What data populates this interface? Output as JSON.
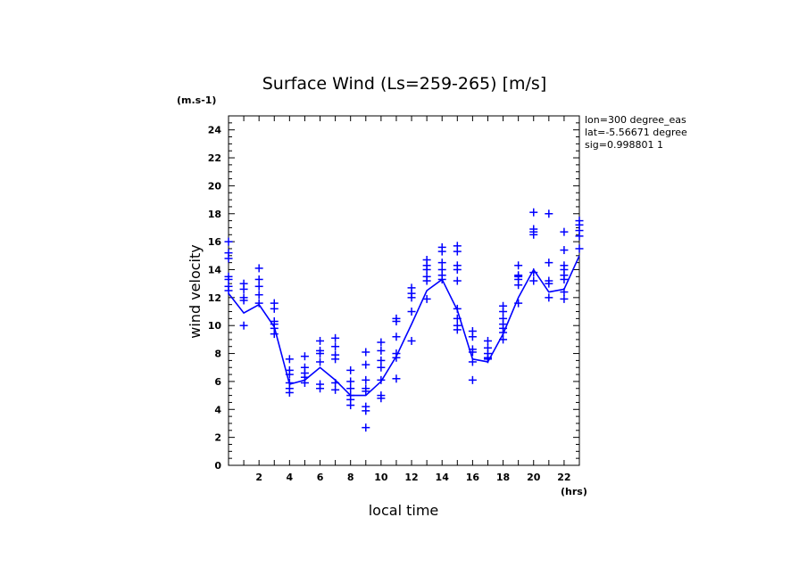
{
  "chart_data": {
    "type": "line",
    "title": "Surface Wind  (Ls=259-265) [m/s]",
    "xlabel": "local time",
    "ylabel": "wind velocity",
    "x_unit": "(hrs)",
    "y_unit": "(m.s-1)",
    "xlim": [
      0,
      23
    ],
    "ylim": [
      0,
      25
    ],
    "x_ticks": [
      2,
      4,
      6,
      8,
      10,
      12,
      14,
      16,
      18,
      20,
      22
    ],
    "y_ticks": [
      0,
      2,
      4,
      6,
      8,
      10,
      12,
      14,
      16,
      18,
      20,
      22,
      24
    ],
    "info_lines": [
      "lon=300 degree_eas",
      "lat=-5.56671 degree",
      "sig=0.998801 1"
    ],
    "color": "#0000ff",
    "series": [
      {
        "style": "line",
        "x": [
          0,
          1,
          2,
          3,
          4,
          5,
          6,
          7,
          8,
          9,
          10,
          11,
          12,
          13,
          14,
          15,
          16,
          17,
          18,
          19,
          20,
          21,
          22,
          23
        ],
        "y": [
          12.3,
          10.9,
          11.5,
          9.9,
          5.8,
          6.1,
          7.0,
          6.1,
          5.0,
          5.0,
          6.0,
          7.8,
          10.1,
          12.5,
          13.3,
          11.1,
          7.6,
          7.4,
          9.4,
          12.0,
          14.0,
          12.4,
          12.6,
          15.0
        ]
      },
      {
        "style": "markers",
        "marker": "+",
        "points": [
          [
            0,
            16.0
          ],
          [
            0,
            15.2
          ],
          [
            0,
            14.8
          ],
          [
            0,
            13.5
          ],
          [
            0,
            13.3
          ],
          [
            0,
            12.8
          ],
          [
            0,
            12.5
          ],
          [
            1,
            13.0
          ],
          [
            1,
            12.6
          ],
          [
            1,
            12.0
          ],
          [
            1,
            11.8
          ],
          [
            1,
            10.0
          ],
          [
            2,
            14.1
          ],
          [
            2,
            13.3
          ],
          [
            2,
            12.8
          ],
          [
            2,
            12.2
          ],
          [
            2,
            11.6
          ],
          [
            3,
            11.6
          ],
          [
            3,
            11.2
          ],
          [
            3,
            10.3
          ],
          [
            3,
            10.1
          ],
          [
            3,
            9.8
          ],
          [
            3,
            9.4
          ],
          [
            4,
            7.6
          ],
          [
            4,
            6.8
          ],
          [
            4,
            6.5
          ],
          [
            4,
            5.9
          ],
          [
            4,
            5.5
          ],
          [
            4,
            5.2
          ],
          [
            5,
            7.8
          ],
          [
            5,
            7.0
          ],
          [
            5,
            6.6
          ],
          [
            5,
            6.3
          ],
          [
            5,
            5.9
          ],
          [
            6,
            8.9
          ],
          [
            6,
            8.2
          ],
          [
            6,
            8.0
          ],
          [
            6,
            7.4
          ],
          [
            6,
            5.8
          ],
          [
            6,
            5.5
          ],
          [
            7,
            9.1
          ],
          [
            7,
            8.5
          ],
          [
            7,
            7.9
          ],
          [
            7,
            7.6
          ],
          [
            7,
            5.9
          ],
          [
            7,
            5.4
          ],
          [
            8,
            6.8
          ],
          [
            8,
            6.0
          ],
          [
            8,
            5.5
          ],
          [
            8,
            5.0
          ],
          [
            8,
            4.7
          ],
          [
            8,
            4.3
          ],
          [
            9,
            8.1
          ],
          [
            9,
            7.2
          ],
          [
            9,
            6.1
          ],
          [
            9,
            5.5
          ],
          [
            9,
            5.3
          ],
          [
            9,
            4.2
          ],
          [
            9,
            3.9
          ],
          [
            9,
            2.7
          ],
          [
            10,
            8.8
          ],
          [
            10,
            8.2
          ],
          [
            10,
            7.5
          ],
          [
            10,
            7.0
          ],
          [
            10,
            6.1
          ],
          [
            10,
            5.0
          ],
          [
            10,
            4.8
          ],
          [
            11,
            10.5
          ],
          [
            11,
            10.3
          ],
          [
            11,
            9.2
          ],
          [
            11,
            8.0
          ],
          [
            11,
            7.7
          ],
          [
            11,
            6.2
          ],
          [
            12,
            12.7
          ],
          [
            12,
            12.3
          ],
          [
            12,
            12.0
          ],
          [
            12,
            11.0
          ],
          [
            12,
            8.9
          ],
          [
            13,
            14.7
          ],
          [
            13,
            14.3
          ],
          [
            13,
            14.0
          ],
          [
            13,
            13.5
          ],
          [
            13,
            13.2
          ],
          [
            13,
            11.9
          ],
          [
            14,
            15.6
          ],
          [
            14,
            15.3
          ],
          [
            14,
            14.5
          ],
          [
            14,
            14.0
          ],
          [
            14,
            13.6
          ],
          [
            14,
            13.3
          ],
          [
            15,
            15.7
          ],
          [
            15,
            15.3
          ],
          [
            15,
            14.3
          ],
          [
            15,
            14.0
          ],
          [
            15,
            13.2
          ],
          [
            15,
            11.2
          ],
          [
            15,
            10.5
          ],
          [
            15,
            10.0
          ],
          [
            15,
            9.7
          ],
          [
            16,
            9.6
          ],
          [
            16,
            9.2
          ],
          [
            16,
            8.3
          ],
          [
            16,
            8.1
          ],
          [
            16,
            7.4
          ],
          [
            16,
            6.1
          ],
          [
            17,
            8.9
          ],
          [
            17,
            8.4
          ],
          [
            17,
            8.0
          ],
          [
            17,
            7.7
          ],
          [
            17,
            7.6
          ],
          [
            18,
            11.4
          ],
          [
            18,
            11.0
          ],
          [
            18,
            10.5
          ],
          [
            18,
            10.1
          ],
          [
            18,
            9.8
          ],
          [
            18,
            9.5
          ],
          [
            18,
            9.0
          ],
          [
            19,
            14.3
          ],
          [
            19,
            13.6
          ],
          [
            19,
            13.5
          ],
          [
            19,
            13.3
          ],
          [
            19,
            12.9
          ],
          [
            19,
            11.6
          ],
          [
            20,
            18.1
          ],
          [
            20,
            16.9
          ],
          [
            20,
            16.7
          ],
          [
            20,
            16.5
          ],
          [
            20,
            13.8
          ],
          [
            20,
            13.2
          ],
          [
            21,
            18.0
          ],
          [
            21,
            14.5
          ],
          [
            21,
            13.2
          ],
          [
            21,
            13.0
          ],
          [
            21,
            12.0
          ],
          [
            22,
            16.7
          ],
          [
            22,
            15.4
          ],
          [
            22,
            14.3
          ],
          [
            22,
            14.0
          ],
          [
            22,
            13.6
          ],
          [
            22,
            13.3
          ],
          [
            22,
            12.4
          ],
          [
            22,
            11.9
          ],
          [
            23,
            17.5
          ],
          [
            23,
            17.2
          ],
          [
            23,
            16.8
          ],
          [
            23,
            16.4
          ],
          [
            23,
            15.5
          ]
        ]
      }
    ]
  }
}
